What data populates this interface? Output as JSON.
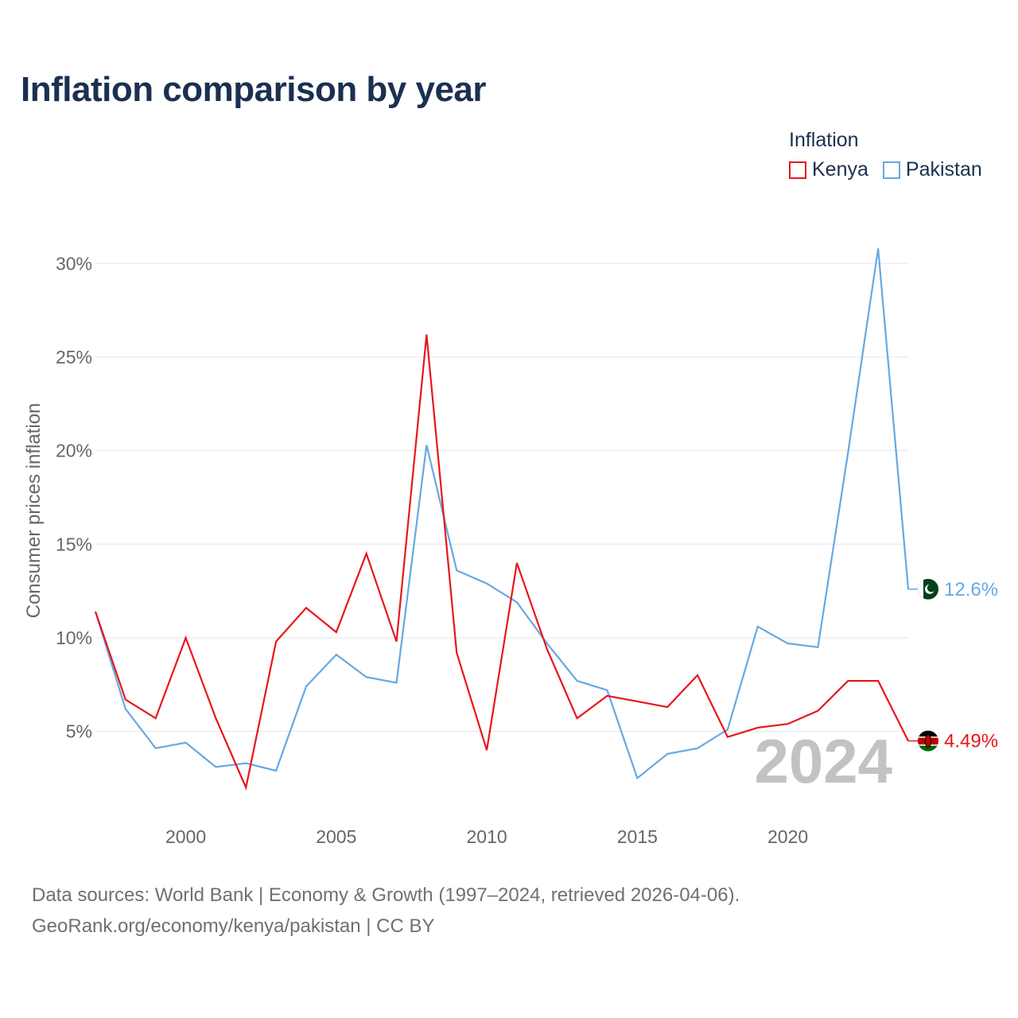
{
  "title": "Inflation comparison by year",
  "legend": {
    "title": "Inflation",
    "items": [
      {
        "name": "Kenya",
        "color": "#e8161b"
      },
      {
        "name": "Pakistan",
        "color": "#66a8e2"
      }
    ]
  },
  "footer": {
    "line1": "Data sources: World Bank | Economy & Growth (1997–2024, retrieved 2026-04-06).",
    "line2": "GeoRank.org/economy/kenya/pakistan | CC BY"
  },
  "chart_data": {
    "type": "line",
    "title": "Inflation comparison by year",
    "xlabel": "",
    "ylabel": "Consumer prices inflation",
    "x": [
      1997,
      1998,
      1999,
      2000,
      2001,
      2002,
      2003,
      2004,
      2005,
      2006,
      2007,
      2008,
      2009,
      2010,
      2011,
      2012,
      2013,
      2014,
      2015,
      2016,
      2017,
      2018,
      2019,
      2020,
      2021,
      2022,
      2023,
      2024
    ],
    "xlim": [
      1997,
      2024
    ],
    "ylim": [
      1.5,
      31.5
    ],
    "x_ticks": [
      2000,
      2005,
      2010,
      2015,
      2020
    ],
    "x_tick_labels": [
      "2000",
      "2005",
      "2010",
      "2015",
      "2020"
    ],
    "y_ticks": [
      5,
      10,
      15,
      20,
      25,
      30
    ],
    "y_tick_labels": [
      "5%",
      "10%",
      "15%",
      "20%",
      "25%",
      "30%"
    ],
    "grid": true,
    "highlight_year": "2024",
    "series": [
      {
        "name": "Kenya",
        "color": "#e8161b",
        "values": [
          11.4,
          6.7,
          5.7,
          10.0,
          5.7,
          2.0,
          9.8,
          11.6,
          10.3,
          14.5,
          9.8,
          26.2,
          9.2,
          4.0,
          14.0,
          9.4,
          5.7,
          6.9,
          6.6,
          6.3,
          8.0,
          4.7,
          5.2,
          5.4,
          6.1,
          7.7,
          7.7,
          4.49
        ],
        "end_label": "4.49%"
      },
      {
        "name": "Pakistan",
        "color": "#66a8e2",
        "values": [
          11.4,
          6.2,
          4.1,
          4.4,
          3.1,
          3.3,
          2.9,
          7.4,
          9.1,
          7.9,
          7.6,
          20.3,
          13.6,
          12.9,
          11.9,
          9.7,
          7.7,
          7.2,
          2.5,
          3.8,
          4.1,
          5.1,
          10.6,
          9.7,
          9.5,
          19.9,
          30.8,
          12.6
        ],
        "end_label": "12.6%"
      }
    ]
  }
}
